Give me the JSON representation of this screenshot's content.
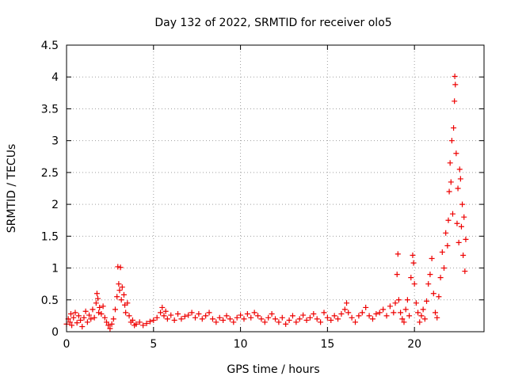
{
  "chart_data": {
    "type": "scatter",
    "title": "Day 132 of 2022, SRMTID for receiver olo5",
    "xlabel": "GPS time / hours",
    "ylabel": "SRMTID / TECUs",
    "xlim": [
      0,
      24
    ],
    "ylim": [
      0,
      4.5
    ],
    "xticks": [
      0,
      5,
      10,
      15,
      20
    ],
    "xtick_labels": [
      "0",
      "5",
      "10",
      "15",
      "20"
    ],
    "yticks": [
      0,
      0.5,
      1,
      1.5,
      2,
      2.5,
      3,
      3.5,
      4,
      4.5
    ],
    "ytick_labels": [
      "0",
      "0.5",
      "1",
      "1.5",
      "2",
      "2.5",
      "3",
      "3.5",
      "4",
      "4.5"
    ],
    "grid": true,
    "marker": "+",
    "color": "#ee0000",
    "series": [
      {
        "name": "olo5",
        "points": [
          [
            0.0,
            0.12
          ],
          [
            0.1,
            0.2
          ],
          [
            0.2,
            0.15
          ],
          [
            0.25,
            0.28
          ],
          [
            0.3,
            0.1
          ],
          [
            0.4,
            0.22
          ],
          [
            0.5,
            0.3
          ],
          [
            0.6,
            0.14
          ],
          [
            0.7,
            0.25
          ],
          [
            0.8,
            0.18
          ],
          [
            0.9,
            0.08
          ],
          [
            1.0,
            0.22
          ],
          [
            1.1,
            0.32
          ],
          [
            1.2,
            0.15
          ],
          [
            1.3,
            0.26
          ],
          [
            1.4,
            0.2
          ],
          [
            1.5,
            0.35
          ],
          [
            1.6,
            0.22
          ],
          [
            1.7,
            0.45
          ],
          [
            1.75,
            0.6
          ],
          [
            1.8,
            0.52
          ],
          [
            1.85,
            0.3
          ],
          [
            1.9,
            0.38
          ],
          [
            2.0,
            0.28
          ],
          [
            2.1,
            0.4
          ],
          [
            2.2,
            0.22
          ],
          [
            2.3,
            0.15
          ],
          [
            2.4,
            0.1
          ],
          [
            2.5,
            0.05
          ],
          [
            2.6,
            0.12
          ],
          [
            2.7,
            0.2
          ],
          [
            2.8,
            0.35
          ],
          [
            2.9,
            0.55
          ],
          [
            2.95,
            1.02
          ],
          [
            3.0,
            0.75
          ],
          [
            3.05,
            0.65
          ],
          [
            3.1,
            1.01
          ],
          [
            3.15,
            0.5
          ],
          [
            3.2,
            0.7
          ],
          [
            3.3,
            0.58
          ],
          [
            3.35,
            0.42
          ],
          [
            3.4,
            0.3
          ],
          [
            3.5,
            0.45
          ],
          [
            3.6,
            0.25
          ],
          [
            3.7,
            0.15
          ],
          [
            3.8,
            0.18
          ],
          [
            3.9,
            0.1
          ],
          [
            4.0,
            0.12
          ],
          [
            4.2,
            0.15
          ],
          [
            4.4,
            0.1
          ],
          [
            4.6,
            0.13
          ],
          [
            4.8,
            0.16
          ],
          [
            5.0,
            0.18
          ],
          [
            5.2,
            0.22
          ],
          [
            5.4,
            0.3
          ],
          [
            5.5,
            0.38
          ],
          [
            5.6,
            0.25
          ],
          [
            5.7,
            0.32
          ],
          [
            5.8,
            0.2
          ],
          [
            6.0,
            0.26
          ],
          [
            6.2,
            0.18
          ],
          [
            6.4,
            0.28
          ],
          [
            6.6,
            0.2
          ],
          [
            6.8,
            0.24
          ],
          [
            7.0,
            0.26
          ],
          [
            7.2,
            0.3
          ],
          [
            7.4,
            0.22
          ],
          [
            7.6,
            0.28
          ],
          [
            7.8,
            0.2
          ],
          [
            8.0,
            0.25
          ],
          [
            8.2,
            0.3
          ],
          [
            8.4,
            0.2
          ],
          [
            8.6,
            0.15
          ],
          [
            8.8,
            0.22
          ],
          [
            9.0,
            0.18
          ],
          [
            9.2,
            0.25
          ],
          [
            9.4,
            0.2
          ],
          [
            9.6,
            0.15
          ],
          [
            9.8,
            0.22
          ],
          [
            10.0,
            0.26
          ],
          [
            10.2,
            0.2
          ],
          [
            10.4,
            0.28
          ],
          [
            10.6,
            0.22
          ],
          [
            10.8,
            0.3
          ],
          [
            11.0,
            0.25
          ],
          [
            11.2,
            0.2
          ],
          [
            11.4,
            0.15
          ],
          [
            11.6,
            0.22
          ],
          [
            11.8,
            0.28
          ],
          [
            12.0,
            0.2
          ],
          [
            12.2,
            0.15
          ],
          [
            12.4,
            0.22
          ],
          [
            12.6,
            0.12
          ],
          [
            12.8,
            0.18
          ],
          [
            13.0,
            0.25
          ],
          [
            13.2,
            0.15
          ],
          [
            13.4,
            0.2
          ],
          [
            13.6,
            0.26
          ],
          [
            13.8,
            0.18
          ],
          [
            14.0,
            0.22
          ],
          [
            14.2,
            0.28
          ],
          [
            14.4,
            0.2
          ],
          [
            14.6,
            0.15
          ],
          [
            14.8,
            0.3
          ],
          [
            15.0,
            0.22
          ],
          [
            15.2,
            0.18
          ],
          [
            15.4,
            0.25
          ],
          [
            15.6,
            0.2
          ],
          [
            15.8,
            0.28
          ],
          [
            16.0,
            0.35
          ],
          [
            16.1,
            0.45
          ],
          [
            16.2,
            0.3
          ],
          [
            16.4,
            0.22
          ],
          [
            16.6,
            0.15
          ],
          [
            16.8,
            0.25
          ],
          [
            17.0,
            0.3
          ],
          [
            17.2,
            0.38
          ],
          [
            17.4,
            0.25
          ],
          [
            17.6,
            0.2
          ],
          [
            17.8,
            0.28
          ],
          [
            18.0,
            0.3
          ],
          [
            18.2,
            0.35
          ],
          [
            18.4,
            0.25
          ],
          [
            18.6,
            0.4
          ],
          [
            18.8,
            0.3
          ],
          [
            18.9,
            0.45
          ],
          [
            19.0,
            0.9
          ],
          [
            19.05,
            1.22
          ],
          [
            19.1,
            0.5
          ],
          [
            19.2,
            0.3
          ],
          [
            19.3,
            0.2
          ],
          [
            19.4,
            0.15
          ],
          [
            19.5,
            0.35
          ],
          [
            19.6,
            0.5
          ],
          [
            19.7,
            0.25
          ],
          [
            19.8,
            0.85
          ],
          [
            19.9,
            1.2
          ],
          [
            19.95,
            1.08
          ],
          [
            20.0,
            0.75
          ],
          [
            20.1,
            0.45
          ],
          [
            20.2,
            0.3
          ],
          [
            20.3,
            0.15
          ],
          [
            20.4,
            0.25
          ],
          [
            20.5,
            0.35
          ],
          [
            20.6,
            0.2
          ],
          [
            20.7,
            0.48
          ],
          [
            20.8,
            0.75
          ],
          [
            20.9,
            0.9
          ],
          [
            21.0,
            1.15
          ],
          [
            21.1,
            0.6
          ],
          [
            21.2,
            0.3
          ],
          [
            21.3,
            0.22
          ],
          [
            21.4,
            0.55
          ],
          [
            21.5,
            0.85
          ],
          [
            21.6,
            1.25
          ],
          [
            21.7,
            1.0
          ],
          [
            21.8,
            1.55
          ],
          [
            21.9,
            1.35
          ],
          [
            21.95,
            1.75
          ],
          [
            22.0,
            2.2
          ],
          [
            22.05,
            2.65
          ],
          [
            22.1,
            2.35
          ],
          [
            22.15,
            3.0
          ],
          [
            22.2,
            1.85
          ],
          [
            22.25,
            3.2
          ],
          [
            22.3,
            3.62
          ],
          [
            22.32,
            4.01
          ],
          [
            22.35,
            3.88
          ],
          [
            22.4,
            2.8
          ],
          [
            22.45,
            1.7
          ],
          [
            22.5,
            2.25
          ],
          [
            22.55,
            1.4
          ],
          [
            22.6,
            2.55
          ],
          [
            22.65,
            2.4
          ],
          [
            22.7,
            1.65
          ],
          [
            22.75,
            2.0
          ],
          [
            22.8,
            1.2
          ],
          [
            22.85,
            1.8
          ],
          [
            22.9,
            0.95
          ],
          [
            22.95,
            1.45
          ]
        ]
      }
    ]
  }
}
